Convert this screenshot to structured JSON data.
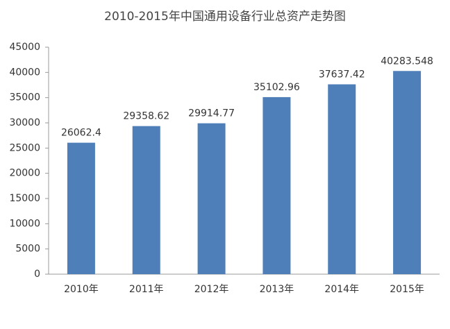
{
  "chart_data": {
    "type": "bar",
    "title": "2010-2015年中国通用设备行业总资产走势图",
    "categories": [
      "2010年",
      "2011年",
      "2012年",
      "2013年",
      "2014年",
      "2015年"
    ],
    "values": [
      26062.4,
      29358.62,
      29914.77,
      35102.96,
      37637.42,
      40283.548
    ],
    "color": "#4f7fb8",
    "ylim": [
      0,
      45000
    ],
    "yticks": [
      0,
      5000,
      10000,
      15000,
      20000,
      25000,
      30000,
      35000,
      40000,
      45000
    ],
    "grid": false
  }
}
